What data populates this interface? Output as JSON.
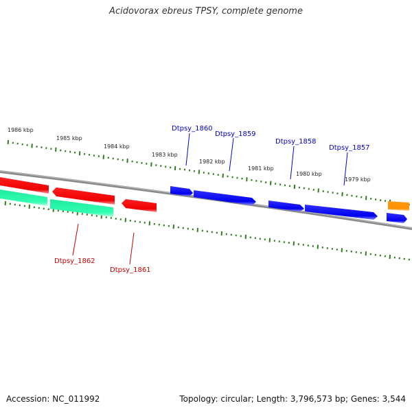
{
  "title": "Acidovorax ebreus TPSY, complete genome",
  "footer": {
    "accession": "Accession: NC_011992",
    "stats": "Topology: circular; Length: 3,796,573 bp; Genes: 3,544"
  },
  "colors": {
    "forward_gene": "#0000ff",
    "reverse_gene": "#ff0000",
    "rna_gene": "#33ffb0",
    "other_gene": "#ff9900",
    "tick": "#2e7d1c",
    "backbone": "#888888"
  },
  "scale": {
    "unit": "kbp",
    "labels": [
      {
        "kbp": 1986,
        "text": "1986 kbp"
      },
      {
        "kbp": 1985,
        "text": "1985 kbp"
      },
      {
        "kbp": 1984,
        "text": "1984 kbp"
      },
      {
        "kbp": 1983,
        "text": "1983 kbp"
      },
      {
        "kbp": 1982,
        "text": "1982 kbp"
      },
      {
        "kbp": 1981,
        "text": "1981 kbp"
      },
      {
        "kbp": 1980,
        "text": "1980 kbp"
      },
      {
        "kbp": 1979,
        "text": "1979 kbp"
      }
    ]
  },
  "genes": [
    {
      "name": "Dtpsy_1860",
      "strand": "forward",
      "labeled": true
    },
    {
      "name": "Dtpsy_1859",
      "strand": "forward",
      "labeled": true
    },
    {
      "name": "Dtpsy_1858",
      "strand": "forward",
      "labeled": true
    },
    {
      "name": "Dtpsy_1857",
      "strand": "forward",
      "labeled": true
    },
    {
      "name": "Dtpsy_1862",
      "strand": "reverse",
      "labeled": true
    },
    {
      "name": "Dtpsy_1861",
      "strand": "reverse",
      "labeled": true
    }
  ]
}
